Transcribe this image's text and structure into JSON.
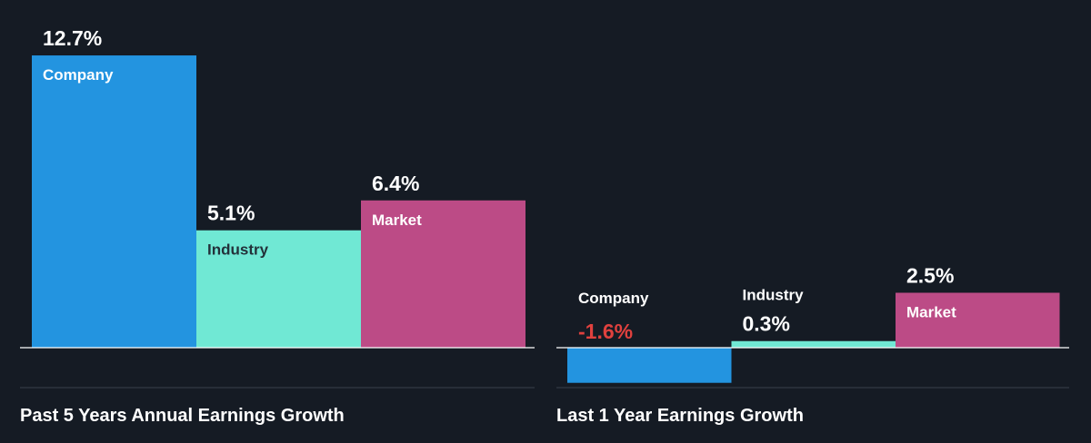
{
  "chart_data": [
    {
      "type": "bar",
      "title": "Past 5 Years Annual Earnings Growth",
      "categories": [
        "Company",
        "Industry",
        "Market"
      ],
      "values": [
        12.7,
        5.1,
        6.4
      ],
      "value_labels": [
        "12.7%",
        "5.1%",
        "6.4%"
      ],
      "colors": [
        "#2394e0",
        "#70e8d4",
        "#bc4b86"
      ],
      "grid": false,
      "legend": "none"
    },
    {
      "type": "bar",
      "title": "Last 1 Year Earnings Growth",
      "categories": [
        "Company",
        "Industry",
        "Market"
      ],
      "values": [
        -1.6,
        0.3,
        2.5
      ],
      "value_labels": [
        "-1.6%",
        "0.3%",
        "2.5%"
      ],
      "colors": [
        "#2394e0",
        "#70e8d4",
        "#bc4b86"
      ],
      "negative_color": "#e0413e",
      "grid": false,
      "legend": "none"
    }
  ]
}
